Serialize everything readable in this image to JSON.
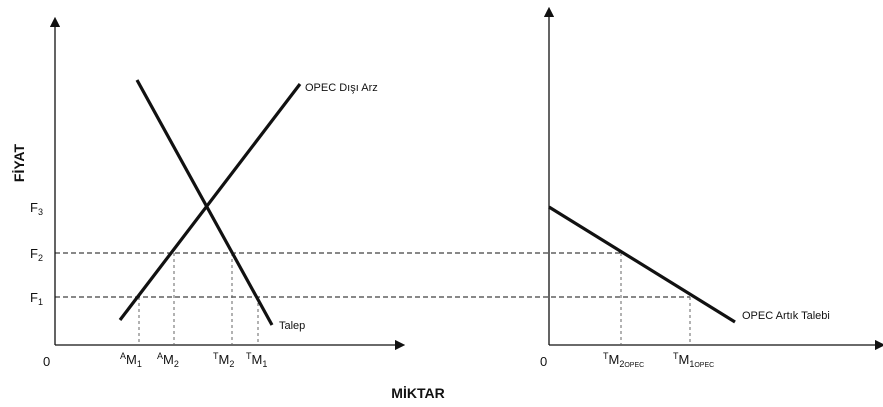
{
  "left_panel": {
    "y_axis_title": "FİYAT",
    "x_axis_title": "MİKTAR",
    "origin": "0",
    "prices": [
      {
        "base": "F",
        "sub": "3"
      },
      {
        "base": "F",
        "sub": "2"
      },
      {
        "base": "F",
        "sub": "1"
      }
    ],
    "quantities": [
      {
        "sup": "A",
        "base": "M",
        "sub": "1"
      },
      {
        "sup": "A",
        "base": "M",
        "sub": "2"
      },
      {
        "sup": "T",
        "base": "M",
        "sub": "2"
      },
      {
        "sup": "T",
        "base": "M",
        "sub": "1"
      }
    ],
    "supply_label": "OPEC Dışı Arz",
    "demand_label": "Talep"
  },
  "right_panel": {
    "origin": "0",
    "quantities": [
      {
        "sup": "T",
        "base": "M",
        "sub": "2",
        "sub2": "OPEC"
      },
      {
        "sup": "T",
        "base": "M",
        "sub": "1",
        "sub2": "OPEC"
      }
    ],
    "residual_demand_label": "OPEC Artık Talebi"
  }
}
